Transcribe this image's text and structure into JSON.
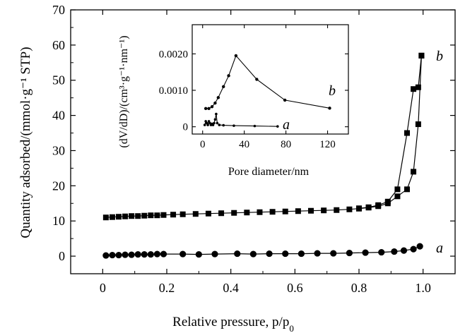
{
  "chart_data": [
    {
      "type": "scatter",
      "title": "",
      "xlabel": "Relative pressure, p/p",
      "xlabel_sub": "0",
      "ylabel": "Quantity adsorbed/(mmol·g⁻¹ STP)",
      "xlim": [
        -0.1,
        1.1
      ],
      "ylim": [
        -5,
        70
      ],
      "xticks": [
        "0",
        "0.2",
        "0.4",
        "0.6",
        "0.8",
        "1.0"
      ],
      "yticks": [
        "0",
        "10",
        "20",
        "30",
        "40",
        "50",
        "60",
        "70"
      ],
      "series": [
        {
          "name": "b",
          "marker": "square",
          "label": "b",
          "adsorption": {
            "x": [
              0.01,
              0.03,
              0.05,
              0.07,
              0.09,
              0.11,
              0.13,
              0.15,
              0.17,
              0.19,
              0.22,
              0.25,
              0.29,
              0.33,
              0.37,
              0.41,
              0.45,
              0.49,
              0.53,
              0.57,
              0.61,
              0.65,
              0.69,
              0.73,
              0.77,
              0.8,
              0.83,
              0.86,
              0.89,
              0.92,
              0.95,
              0.97,
              0.985,
              0.995
            ],
            "y": [
              11.0,
              11.1,
              11.2,
              11.3,
              11.4,
              11.4,
              11.5,
              11.6,
              11.6,
              11.7,
              11.8,
              11.9,
              12.0,
              12.1,
              12.2,
              12.3,
              12.4,
              12.5,
              12.6,
              12.7,
              12.8,
              12.9,
              13.0,
              13.1,
              13.3,
              13.5,
              13.8,
              14.2,
              15.0,
              17.0,
              19.0,
              24.0,
              37.5,
              57.0
            ]
          },
          "desorption": {
            "x": [
              0.995,
              0.985,
              0.97,
              0.95,
              0.92,
              0.89,
              0.86,
              0.83,
              0.8
            ],
            "y": [
              57.0,
              48.0,
              47.5,
              35.0,
              19.0,
              15.5,
              14.5,
              13.9,
              13.6
            ]
          }
        },
        {
          "name": "a",
          "marker": "circle",
          "label": "a",
          "adsorption": {
            "x": [
              0.01,
              0.03,
              0.05,
              0.07,
              0.09,
              0.11,
              0.13,
              0.15,
              0.17,
              0.19,
              0.25,
              0.3,
              0.35,
              0.42,
              0.47,
              0.52,
              0.57,
              0.62,
              0.67,
              0.72,
              0.77,
              0.82,
              0.87,
              0.91,
              0.94,
              0.97,
              0.99
            ],
            "y": [
              0.2,
              0.3,
              0.3,
              0.4,
              0.4,
              0.5,
              0.5,
              0.5,
              0.6,
              0.6,
              0.6,
              0.5,
              0.6,
              0.7,
              0.6,
              0.7,
              0.7,
              0.7,
              0.8,
              0.8,
              0.9,
              1.0,
              1.1,
              1.3,
              1.6,
              2.0,
              2.8
            ]
          }
        }
      ]
    },
    {
      "type": "line",
      "title": "",
      "xlabel": "Pore diameter/nm",
      "ylabel": "(dV/dD)/(cm³·g⁻¹·nm⁻¹)",
      "xlim": [
        -10,
        140
      ],
      "ylim": [
        -0.0002,
        0.0028
      ],
      "xticks": [
        "0",
        "40",
        "80",
        "120"
      ],
      "yticks": [
        "0",
        "0.0010",
        "0.0020"
      ],
      "series": [
        {
          "name": "b",
          "label": "b",
          "x": [
            3,
            6,
            9,
            12,
            15,
            20,
            25,
            32,
            52,
            79,
            122
          ],
          "y": [
            0.0005,
            0.0005,
            0.00055,
            0.00065,
            0.0008,
            0.0011,
            0.0014,
            0.00195,
            0.0013,
            0.00073,
            0.00051
          ]
        },
        {
          "name": "a",
          "label": "a",
          "x": [
            2,
            3,
            4,
            5,
            6,
            7,
            8,
            9,
            10,
            11,
            12,
            13,
            14,
            16,
            20,
            30,
            50,
            72
          ],
          "y": [
            5e-05,
            0.00015,
            0.0001,
            5e-05,
            0.00015,
            0.0001,
            5e-05,
            8e-05,
            5e-05,
            0.0001,
            0.0002,
            0.00035,
            0.0001,
            5e-05,
            4e-05,
            3e-05,
            2e-05,
            1e-05
          ]
        }
      ]
    }
  ]
}
